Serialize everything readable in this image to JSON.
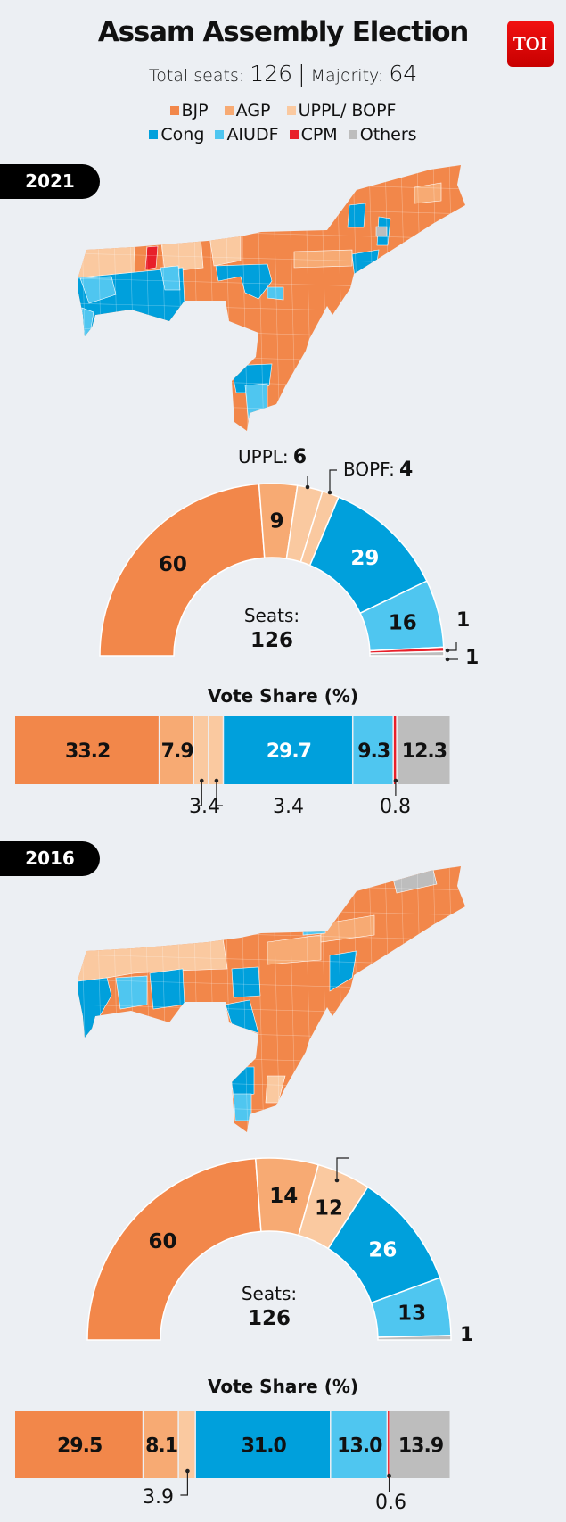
{
  "header": {
    "title": "Assam Assembly Election",
    "total_seats_label": "Total seats:",
    "total_seats": "126",
    "separator": "|",
    "majority_label": "Majority:",
    "majority": "64",
    "logo_text": "TOI"
  },
  "legend": [
    {
      "label": "BJP",
      "color": "#F2874A"
    },
    {
      "label": "AGP",
      "color": "#F7AA73"
    },
    {
      "label": "UPPL/ BOPF",
      "color": "#FAC9A0"
    },
    {
      "label": "Cong",
      "color": "#00A0DC"
    },
    {
      "label": "AIUDF",
      "color": "#4FC6F0"
    },
    {
      "label": "CPM",
      "color": "#E8202A"
    },
    {
      "label": "Others",
      "color": "#BDBDBD"
    }
  ],
  "sections": {
    "y2021": {
      "year": "2021",
      "seats_label": "Seats:",
      "seats_total": "126",
      "uppl_label": "UPPL:",
      "uppl_value": "6",
      "bopf_label": "BOPF:",
      "bopf_value": "4",
      "cpm_value": "1",
      "others_value": "1",
      "vote_title": "Vote Share (%)",
      "vote_ext": {
        "uppl": "3.4",
        "bopf": "3.4",
        "cpm": "0.8"
      }
    },
    "y2016": {
      "year": "2016",
      "seats_label": "Seats:",
      "seats_total": "126",
      "others_value": "1",
      "vote_title": "Vote Share (%)",
      "vote_ext": {
        "bpf": "3.9",
        "cpm": "0.6"
      }
    }
  },
  "chart_data": [
    {
      "type": "pie",
      "title": "Seats: 126",
      "year": "2021",
      "categories": [
        "BJP",
        "AGP",
        "UPPL",
        "BOPF",
        "Cong",
        "AIUDF",
        "CPM",
        "Others"
      ],
      "values": [
        60,
        9,
        6,
        4,
        29,
        16,
        1,
        1
      ],
      "colors": [
        "#F2874A",
        "#F7AA73",
        "#FAC9A0",
        "#FAC9A0",
        "#00A0DC",
        "#4FC6F0",
        "#E8202A",
        "#BDBDBD"
      ],
      "inside_labels": [
        "60",
        "9",
        "",
        "",
        "29",
        "16",
        "",
        ""
      ],
      "label_colors": [
        "#111",
        "#111",
        "#111",
        "#111",
        "#fff",
        "#111",
        "#111",
        "#111"
      ],
      "shape": "half-donut"
    },
    {
      "type": "bar",
      "title": "Vote Share (%)",
      "year": "2021",
      "categories": [
        "BJP",
        "AGP",
        "UPPL",
        "BOPF",
        "Cong",
        "AIUDF",
        "CPM",
        "Others"
      ],
      "values": [
        33.2,
        7.9,
        3.4,
        3.4,
        29.7,
        9.3,
        0.8,
        12.3
      ],
      "labels": [
        "33.2",
        "7.9",
        "",
        "",
        "29.7",
        "9.3",
        "",
        "12.3"
      ],
      "colors": [
        "#F2874A",
        "#F7AA73",
        "#FAC9A0",
        "#FAC9A0",
        "#00A0DC",
        "#4FC6F0",
        "#E8202A",
        "#BDBDBD"
      ],
      "label_colors": [
        "#111",
        "#111",
        "#111",
        "#111",
        "#fff",
        "#111",
        "#111",
        "#111"
      ],
      "orientation": "stacked-horizontal"
    },
    {
      "type": "pie",
      "title": "Seats: 126",
      "year": "2016",
      "categories": [
        "BJP",
        "AGP",
        "BOPF",
        "Cong",
        "AIUDF",
        "Others"
      ],
      "values": [
        60,
        14,
        12,
        26,
        13,
        1
      ],
      "colors": [
        "#F2874A",
        "#F7AA73",
        "#FAC9A0",
        "#00A0DC",
        "#4FC6F0",
        "#BDBDBD"
      ],
      "inside_labels": [
        "60",
        "14",
        "12",
        "26",
        "13",
        ""
      ],
      "label_colors": [
        "#111",
        "#111",
        "#111",
        "#fff",
        "#111",
        "#111"
      ],
      "shape": "half-donut"
    },
    {
      "type": "bar",
      "title": "Vote Share (%)",
      "year": "2016",
      "categories": [
        "BJP",
        "AGP",
        "BOPF",
        "Cong",
        "AIUDF",
        "CPM",
        "Others"
      ],
      "values": [
        29.5,
        8.1,
        3.9,
        31.0,
        13.0,
        0.6,
        13.9
      ],
      "labels": [
        "29.5",
        "8.1",
        "",
        "31.0",
        "13.0",
        "",
        "13.9"
      ],
      "colors": [
        "#F2874A",
        "#F7AA73",
        "#FAC9A0",
        "#00A0DC",
        "#4FC6F0",
        "#E8202A",
        "#BDBDBD"
      ],
      "label_colors": [
        "#111",
        "#111",
        "#111",
        "#111",
        "#111",
        "#111",
        "#111"
      ],
      "orientation": "stacked-horizontal"
    }
  ]
}
